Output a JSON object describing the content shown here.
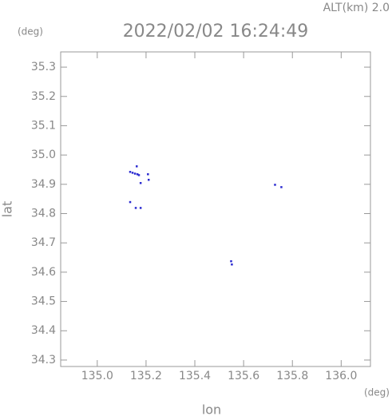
{
  "chart_data": {
    "type": "scatter",
    "title": "2022/02/02 16:24:49",
    "annotation": "ALT(km) 2.0",
    "x_unit": "(deg)",
    "y_unit": "(deg)",
    "xlabel": "lon",
    "ylabel": "lat",
    "color": "#2a2ad0",
    "x": [
      135.134,
      135.144,
      135.154,
      135.164,
      135.17,
      135.161,
      135.177,
      135.207,
      135.21,
      135.134,
      135.157,
      135.177,
      135.548,
      135.551,
      135.728,
      135.754
    ],
    "values": [
      34.943,
      34.94,
      34.937,
      34.935,
      34.932,
      34.962,
      34.905,
      34.935,
      34.916,
      34.84,
      34.82,
      34.82,
      34.638,
      34.627,
      34.899,
      34.891
    ],
    "xlim": [
      134.85,
      136.12
    ],
    "ylim": [
      34.278,
      35.352
    ],
    "xticks": [
      {
        "value": 135,
        "label": "135.0"
      },
      135.2,
      135.4,
      135.6,
      135.8,
      {
        "value": 136,
        "label": "136.0"
      }
    ],
    "yticks": [
      34.3,
      34.4,
      34.5,
      34.6,
      34.7,
      34.8,
      34.9,
      {
        "value": 35,
        "label": "35.0"
      },
      35.1,
      35.2,
      35.3
    ]
  }
}
